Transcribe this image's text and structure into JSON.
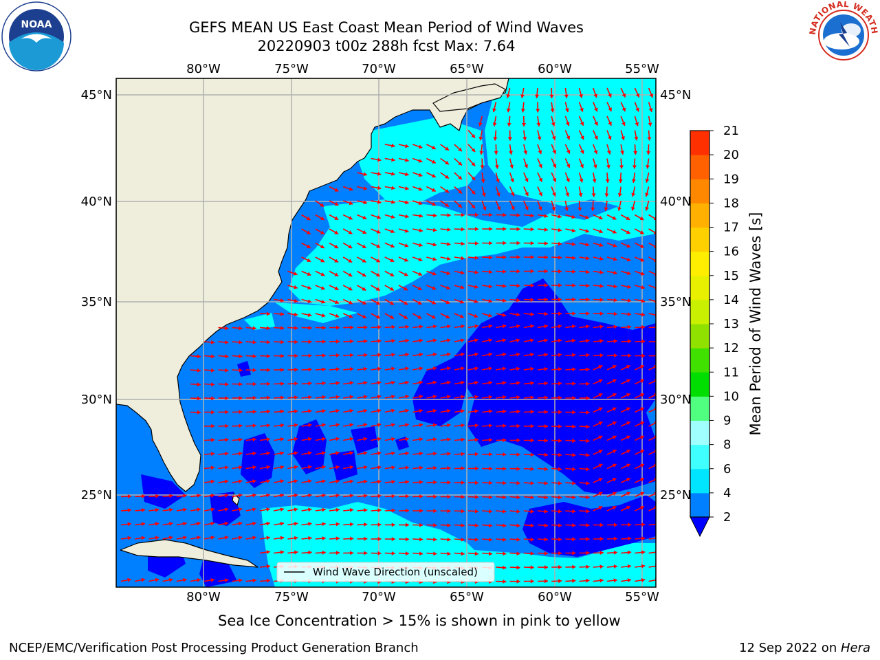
{
  "title_line1": "GEFS MEAN US East Coast Mean Period of Wind Waves",
  "title_line2": "20220903 t00z 288h fcst   Max: 7.64",
  "map": {
    "lon_labels": [
      "80°W",
      "75°W",
      "70°W",
      "65°W",
      "60°W",
      "55°W"
    ],
    "lat_labels": [
      "45°N",
      "40°N",
      "35°N",
      "30°N",
      "25°N"
    ],
    "legend_label": "Wind Wave Direction (unscaled)",
    "colors": {
      "land": "#efeedc",
      "coast": "#000000",
      "grid": "#b0b0b0",
      "arrow": "#ff0000"
    }
  },
  "colorbar": {
    "label": "Mean Period of Wind Waves [s]",
    "ticks": [
      "2",
      "4",
      "6",
      "8",
      "9",
      "10",
      "11",
      "12",
      "13",
      "14",
      "15",
      "16",
      "17",
      "18",
      "19",
      "20",
      "21"
    ],
    "colors": [
      "#0080ff",
      "#00e5ff",
      "#40ffff",
      "#a0ffff",
      "#50ff80",
      "#00dd00",
      "#40e000",
      "#90e000",
      "#c8f000",
      "#e8f000",
      "#ffee00",
      "#ffd000",
      "#ffb000",
      "#ff8800",
      "#ff6000",
      "#ff3000",
      "#ff0000"
    ],
    "extend_color": "#0000ff"
  },
  "caption": "Sea Ice Concentration > 15% is shown in pink to yellow",
  "footer_left": "NCEP/EMC/Verification Post Processing Product Generation Branch",
  "footer_right_text": "12 Sep 2022 on ",
  "footer_right_machine": "Hera",
  "logos": {
    "left": "NOAA",
    "right_ring": "NATIONAL WEATHER SERVICE"
  }
}
